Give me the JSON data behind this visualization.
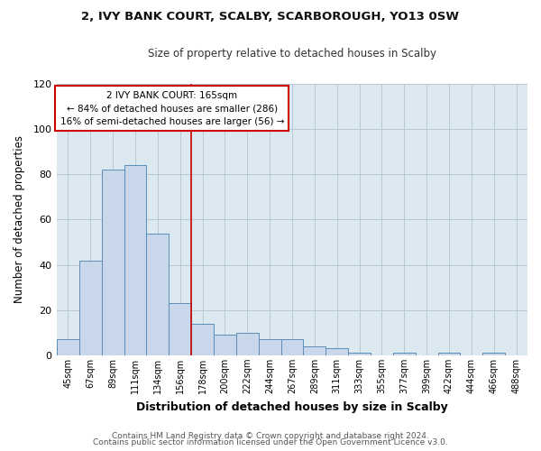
{
  "title": "2, IVY BANK COURT, SCALBY, SCARBOROUGH, YO13 0SW",
  "subtitle": "Size of property relative to detached houses in Scalby",
  "xlabel": "Distribution of detached houses by size in Scalby",
  "ylabel": "Number of detached properties",
  "bar_color": "#c8d8ea",
  "bar_edge_color": "#5b8db8",
  "plot_bg_color": "#dce8f0",
  "fig_bg_color": "#ffffff",
  "categories": [
    "45sqm",
    "67sqm",
    "89sqm",
    "111sqm",
    "134sqm",
    "156sqm",
    "178sqm",
    "200sqm",
    "222sqm",
    "244sqm",
    "267sqm",
    "289sqm",
    "311sqm",
    "333sqm",
    "355sqm",
    "377sqm",
    "399sqm",
    "422sqm",
    "444sqm",
    "466sqm",
    "488sqm"
  ],
  "values": [
    7,
    42,
    82,
    84,
    54,
    23,
    14,
    9,
    10,
    7,
    7,
    4,
    3,
    1,
    0,
    1,
    0,
    1,
    0,
    1,
    0
  ],
  "ylim": [
    0,
    120
  ],
  "yticks": [
    0,
    20,
    40,
    60,
    80,
    100,
    120
  ],
  "vline_x": 5.5,
  "vline_color": "#cc0000",
  "annotation_title": "2 IVY BANK COURT: 165sqm",
  "annotation_line1": "← 84% of detached houses are smaller (286)",
  "annotation_line2": "16% of semi-detached houses are larger (56) →",
  "annotation_box_color": "#ffffff",
  "annotation_box_edge_color": "#cc0000",
  "footer1": "Contains HM Land Registry data © Crown copyright and database right 2024.",
  "footer2": "Contains public sector information licensed under the Open Government Licence v3.0."
}
